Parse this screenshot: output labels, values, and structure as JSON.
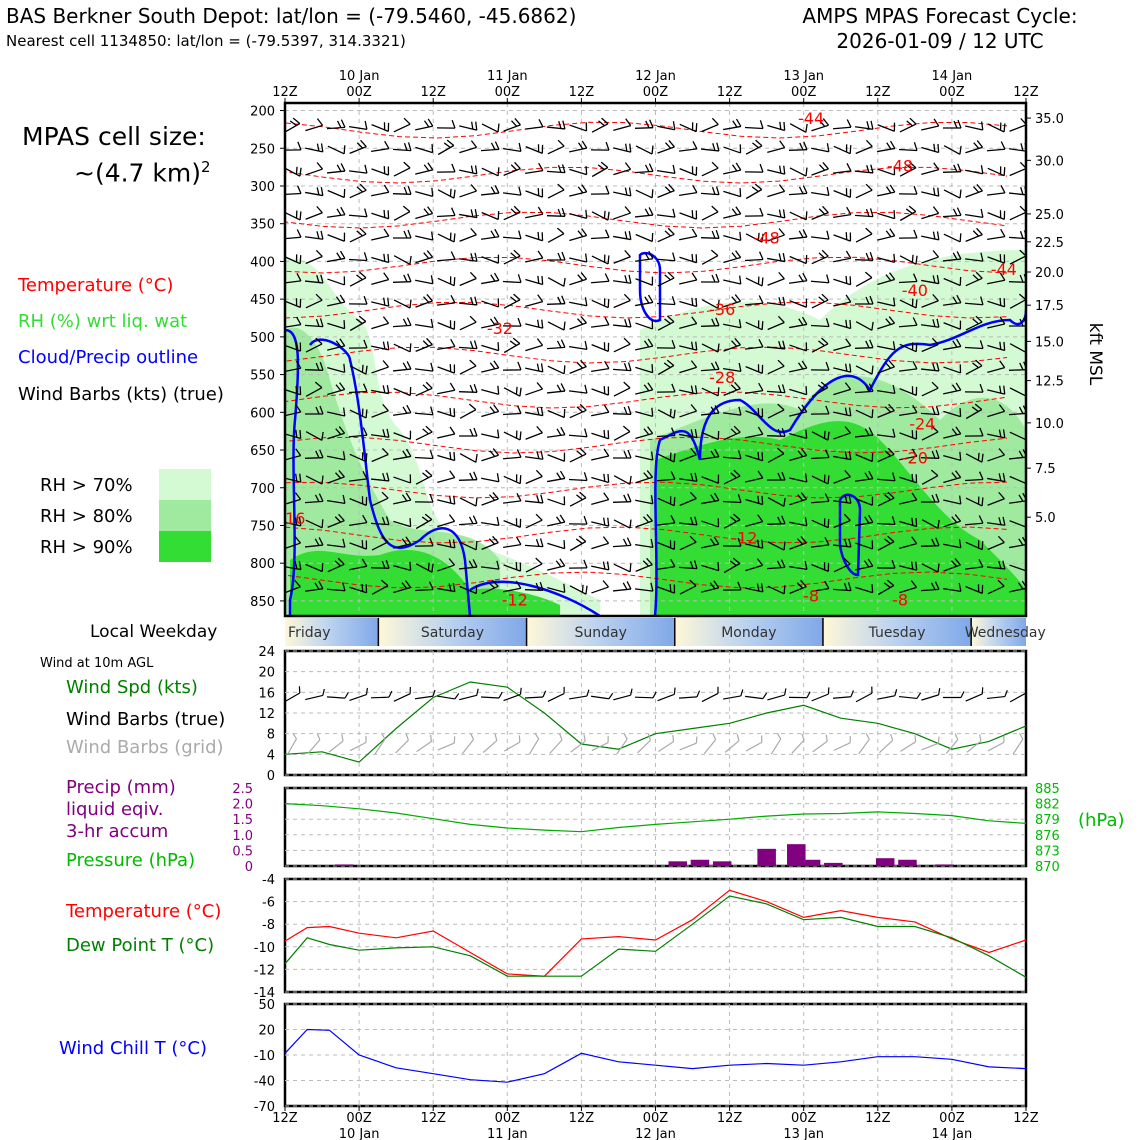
{
  "header": {
    "station": "BAS Berkner South Depot: lat/lon = (-79.5460, -45.6862)",
    "nearest": "Nearest cell 1134850: lat/lon = (-79.5397, 314.3321)",
    "cycle_title": "AMPS MPAS Forecast Cycle:",
    "cycle_time": "2026-01-09 / 12 UTC"
  },
  "sidebar": {
    "cell_size_1": "MPAS cell size:",
    "cell_size_2": "~(4.7 km)",
    "cell_size_sup": "2",
    "leg_temp": "Temperature (°C)",
    "leg_rh": "RH (%) wrt liq. wat",
    "leg_cloud": "Cloud/Precip outline",
    "leg_wind": "Wind Barbs (kts) (true)",
    "rh70": "RH > 70%",
    "rh80": "RH > 80%",
    "rh90": "RH > 90%",
    "weekday_label": "Local Weekday",
    "wind10m": "Wind at 10m AGL",
    "wspd": "Wind Spd (kts)",
    "wbarbs_true": "Wind Barbs (true)",
    "wbarbs_grid": "Wind Barbs (grid)",
    "precip1": "Precip (mm)",
    "precip2": "liquid eqiv.",
    "precip3": "3-hr accum",
    "pressure": "Pressure (hPa)",
    "temp": "Temperature (°C)",
    "dew": "Dew Point T (°C)",
    "windchill": "Wind Chill T (°C)"
  },
  "colors": {
    "temp": "#ff0000",
    "rh": "#33dd33",
    "cloud": "#0000ff",
    "precip": "#800080",
    "pressure": "#00aa00",
    "dew": "#008000",
    "rh70": "#d4fad4",
    "rh80": "#a0eaa0",
    "rh90": "#33dd33"
  },
  "chart_data": [
    {
      "type": "contour",
      "name": "cross-section",
      "x_ticks_top": [
        {
          "hh": "12Z",
          "date": ""
        },
        {
          "hh": "00Z",
          "date": "10 Jan"
        },
        {
          "hh": "12Z",
          "date": ""
        },
        {
          "hh": "00Z",
          "date": "11 Jan"
        },
        {
          "hh": "12Z",
          "date": ""
        },
        {
          "hh": "00Z",
          "date": "12 Jan"
        },
        {
          "hh": "12Z",
          "date": ""
        },
        {
          "hh": "00Z",
          "date": "13 Jan"
        },
        {
          "hh": "12Z",
          "date": ""
        },
        {
          "hh": "00Z",
          "date": "14 Jan"
        },
        {
          "hh": "12Z",
          "date": ""
        }
      ],
      "pressure_levels": [
        200,
        250,
        300,
        350,
        400,
        450,
        500,
        550,
        600,
        650,
        700,
        750,
        800,
        850
      ],
      "ylim": [
        870,
        190
      ],
      "kft_ticks": [
        {
          "p": 210,
          "label": "35.0"
        },
        {
          "p": 266,
          "label": "30.0"
        },
        {
          "p": 337,
          "label": "25.0"
        },
        {
          "p": 374,
          "label": "22.5"
        },
        {
          "p": 414,
          "label": "20.0"
        },
        {
          "p": 458,
          "label": "17.5"
        },
        {
          "p": 506,
          "label": "15.0"
        },
        {
          "p": 558,
          "label": "12.5"
        },
        {
          "p": 614,
          "label": "10.0"
        },
        {
          "p": 674,
          "label": "7.5"
        },
        {
          "p": 739,
          "label": "5.0"
        }
      ],
      "kft_label": "kft MSL",
      "temperature_labels": [
        {
          "x": 3.55,
          "p": 212,
          "label": "-44"
        },
        {
          "x": 4.15,
          "p": 275,
          "label": "-48"
        },
        {
          "x": 3.25,
          "p": 370,
          "label": "-48"
        },
        {
          "x": 2.95,
          "p": 465,
          "label": "-36"
        },
        {
          "x": 1.45,
          "p": 490,
          "label": "-32"
        },
        {
          "x": 4.25,
          "p": 440,
          "label": "-40"
        },
        {
          "x": 4.85,
          "p": 412,
          "label": "-44"
        },
        {
          "x": 2.95,
          "p": 555,
          "label": "-28"
        },
        {
          "x": 4.3,
          "p": 617,
          "label": "-24"
        },
        {
          "x": 4.25,
          "p": 662,
          "label": "-20"
        },
        {
          "x": 0.05,
          "p": 742,
          "label": "-16"
        },
        {
          "x": 3.1,
          "p": 768,
          "label": "-12"
        },
        {
          "x": 1.55,
          "p": 850,
          "label": "-12"
        },
        {
          "x": 3.55,
          "p": 845,
          "label": "-8"
        },
        {
          "x": 4.15,
          "p": 850,
          "label": "-8"
        }
      ],
      "temperature_levels": [
        -48,
        -44,
        -40,
        -36,
        -32,
        -28,
        -24,
        -20,
        -16,
        -12,
        -8
      ]
    },
    {
      "type": "weekday_strip",
      "days": [
        "Friday",
        "Saturday",
        "Sunday",
        "Monday",
        "Tuesday",
        "Wednesday"
      ]
    },
    {
      "type": "line",
      "name": "wind-speed",
      "x_days": [
        0,
        0.25,
        0.5,
        0.75,
        1.0,
        1.25,
        1.5,
        1.75,
        2.0,
        2.25,
        2.5,
        2.75,
        3.0,
        3.25,
        3.5,
        3.75,
        4.0,
        4.25,
        4.5,
        4.75,
        5.0
      ],
      "values": [
        4,
        4.5,
        2.5,
        9,
        15,
        18,
        17,
        12,
        6,
        5,
        8,
        9,
        10,
        12,
        13.5,
        11,
        10,
        8,
        5,
        6.5,
        9.5
      ],
      "yticks": [
        0,
        4,
        8,
        12,
        16,
        20,
        24
      ],
      "ylim": [
        0,
        24
      ]
    },
    {
      "type": "bar+line",
      "name": "precip-pressure",
      "precip_mm": [
        {
          "x": 0.4,
          "v": 0.05
        },
        {
          "x": 2.65,
          "v": 0.15
        },
        {
          "x": 2.8,
          "v": 0.2
        },
        {
          "x": 2.95,
          "v": 0.15
        },
        {
          "x": 3.25,
          "v": 0.55
        },
        {
          "x": 3.45,
          "v": 0.7
        },
        {
          "x": 3.55,
          "v": 0.2
        },
        {
          "x": 3.7,
          "v": 0.1
        },
        {
          "x": 4.05,
          "v": 0.25
        },
        {
          "x": 4.2,
          "v": 0.2
        },
        {
          "x": 4.45,
          "v": 0.05
        }
      ],
      "precip_ticks": [
        "2.5",
        "2.0",
        "1.5",
        "1.0",
        "0.5",
        "0"
      ],
      "pressure_x": [
        0,
        0.25,
        0.5,
        0.75,
        1.0,
        1.25,
        1.5,
        1.75,
        2.0,
        2.25,
        2.5,
        2.75,
        3.0,
        3.25,
        3.5,
        3.75,
        4.0,
        4.25,
        4.5,
        4.75,
        5.0
      ],
      "pressure_hpa": [
        882,
        881.6,
        881,
        880.2,
        879.1,
        878,
        877.3,
        876.9,
        876.6,
        877.4,
        878,
        878.5,
        879,
        879.6,
        880,
        880.1,
        880.4,
        880.1,
        879.7,
        878.7,
        878.2
      ],
      "pressure_ticks": [
        "885",
        "882",
        "879",
        "876",
        "873",
        "870"
      ],
      "pressure_unit": "(hPa)",
      "pressure_range": [
        870,
        885
      ]
    },
    {
      "type": "line",
      "name": "temperature-dewpoint",
      "x_days": [
        0,
        0.15,
        0.3,
        0.5,
        0.75,
        1.0,
        1.25,
        1.5,
        1.75,
        2.0,
        2.25,
        2.5,
        2.75,
        3.0,
        3.25,
        3.5,
        3.75,
        4.0,
        4.25,
        4.5,
        4.75,
        5.0
      ],
      "temperature": [
        -9.5,
        -8.3,
        -8.2,
        -8.8,
        -9.2,
        -8.6,
        -10.5,
        -12.4,
        -12.6,
        -9.3,
        -9.1,
        -9.4,
        -7.6,
        -5.0,
        -6.0,
        -7.4,
        -6.8,
        -7.4,
        -7.8,
        -9.3,
        -10.5,
        -9.4
      ],
      "dewpoint": [
        -11.5,
        -9.2,
        -9.8,
        -10.3,
        -10.1,
        -10.0,
        -10.8,
        -12.6,
        -12.6,
        -12.6,
        -10.2,
        -10.4,
        -8.0,
        -5.5,
        -6.2,
        -7.6,
        -7.4,
        -8.2,
        -8.2,
        -9.2,
        -10.8,
        -12.7
      ],
      "yticks": [
        -4,
        -6,
        -8,
        -10,
        -12,
        -14
      ],
      "ylim": [
        -14,
        -4
      ]
    },
    {
      "type": "line",
      "name": "wind-chill",
      "x_days": [
        0,
        0.15,
        0.3,
        0.5,
        0.75,
        1.0,
        1.25,
        1.5,
        1.75,
        2.0,
        2.25,
        2.5,
        2.75,
        3.0,
        3.25,
        3.5,
        3.75,
        4.0,
        4.25,
        4.5,
        4.75,
        5.0
      ],
      "values": [
        -8,
        20,
        19,
        -10,
        -25,
        -32,
        -39,
        -42,
        -32,
        -8,
        -18,
        -22,
        -26,
        -22,
        -20,
        -22,
        -18,
        -12,
        -12,
        -15,
        -24,
        -26
      ],
      "yticks": [
        50,
        20,
        -10,
        -40,
        -70
      ],
      "ylim": [
        -70,
        50
      ]
    }
  ]
}
